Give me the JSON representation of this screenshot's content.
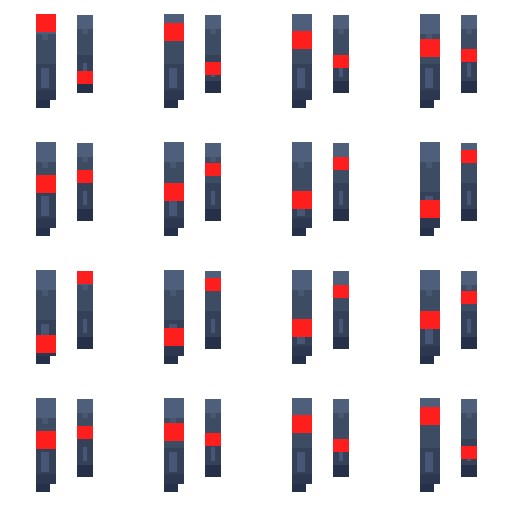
{
  "sheet": {
    "background": "#ffffff",
    "grid": {
      "columns": 4,
      "rows": 4
    }
  },
  "palette": {
    "cap": "#4e5f7b",
    "body_top": "#3d4b63",
    "body_mid": "#344159",
    "body_low": "#2c3850",
    "base": "#253149",
    "inner": "#55688a",
    "highlight": "#ff1e1e"
  },
  "frames": [
    {
      "large_highlight_level": 0.0,
      "small_highlight_level": 0.86
    },
    {
      "large_highlight_level": 0.12,
      "small_highlight_level": 0.72
    },
    {
      "large_highlight_level": 0.22,
      "small_highlight_level": 0.62
    },
    {
      "large_highlight_level": 0.33,
      "small_highlight_level": 0.52
    },
    {
      "large_highlight_level": 0.44,
      "small_highlight_level": 0.41
    },
    {
      "large_highlight_level": 0.54,
      "small_highlight_level": 0.31
    },
    {
      "large_highlight_level": 0.65,
      "small_highlight_level": 0.21
    },
    {
      "large_highlight_level": 0.76,
      "small_highlight_level": 0.1
    },
    {
      "large_highlight_level": 0.86,
      "small_highlight_level": 0.0
    },
    {
      "large_highlight_level": 0.76,
      "small_highlight_level": 0.1
    },
    {
      "large_highlight_level": 0.65,
      "small_highlight_level": 0.21
    },
    {
      "large_highlight_level": 0.54,
      "small_highlight_level": 0.31
    },
    {
      "large_highlight_level": 0.44,
      "small_highlight_level": 0.41
    },
    {
      "large_highlight_level": 0.33,
      "small_highlight_level": 0.52
    },
    {
      "large_highlight_level": 0.22,
      "small_highlight_level": 0.62
    },
    {
      "large_highlight_level": 0.12,
      "small_highlight_level": 0.72
    }
  ]
}
